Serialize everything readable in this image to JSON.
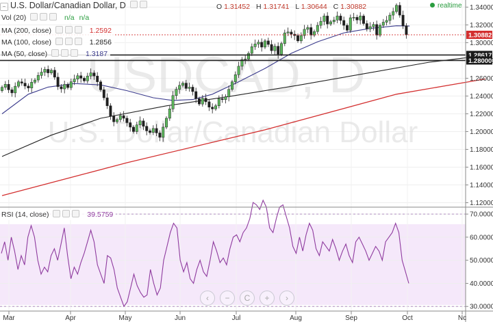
{
  "header": {
    "symbol_title": "U.S. Dollar/Canadian Dollar, D",
    "ohlc": {
      "o_label": "O",
      "o": "1.31452",
      "h_label": "H",
      "h": "1.31741",
      "l_label": "L",
      "l": "1.30644",
      "c_label": "C",
      "c": "1.30882"
    },
    "realtime": "realtime"
  },
  "indicators": {
    "vol": {
      "label": "Vol (20)",
      "value1": "n/a",
      "value2": "n/a"
    },
    "ma200": {
      "label": "MA (200, close)",
      "value": "1.2592",
      "color": "#d32f2f"
    },
    "ma100": {
      "label": "MA (100, close)",
      "value": "1.2856",
      "color": "#222222"
    },
    "ma50": {
      "label": "MA (50, close)",
      "value": "1.3187",
      "color": "#3a3a8c"
    },
    "rsi": {
      "label": "RSI (14, close)",
      "value": "39.5759",
      "color": "#8e3a9e"
    }
  },
  "watermark": {
    "line1": "USDCAD, D",
    "line2": "U.S. Dollar/Canadian Dollar"
  },
  "price_labels": {
    "current": "1.30882",
    "level1": "1.28617",
    "level2": "1.28000"
  },
  "nav_buttons": [
    "‹",
    "−",
    "C",
    "+",
    "›"
  ],
  "chart_data": {
    "type": "candlestick",
    "x_ticks": [
      "Mar",
      "Apr",
      "May",
      "Jun",
      "Jul",
      "Aug",
      "Sep",
      "Oct",
      "Nc"
    ],
    "y_ticks": [
      "1.34000",
      "1.32000",
      "1.30000",
      "1.28000",
      "1.26000",
      "1.24000",
      "1.22000",
      "1.20000",
      "1.18000",
      "1.16000",
      "1.14000",
      "1.12000"
    ],
    "ylim": [
      1.115,
      1.348
    ],
    "horizontal_levels": [
      1.28617,
      1.28
    ],
    "rsi_ticks": [
      "70.0000",
      "60.0000",
      "50.0000",
      "40.0000",
      "30.0000"
    ],
    "rsi_ylim": [
      28,
      73
    ],
    "rsi_band": [
      30,
      70
    ],
    "candles_close": [
      1.2498,
      1.2532,
      1.247,
      1.2435,
      1.251,
      1.256,
      1.2545,
      1.2512,
      1.249,
      1.2555,
      1.258,
      1.2632,
      1.2668,
      1.27,
      1.266,
      1.269,
      1.2612,
      1.2505,
      1.248,
      1.253,
      1.2495,
      1.256,
      1.259,
      1.2628,
      1.26,
      1.257,
      1.2625,
      1.266,
      1.2625,
      1.256,
      1.247,
      1.238,
      1.229,
      1.2175,
      1.211,
      1.2135,
      1.218,
      1.215,
      1.21,
      1.205,
      1.2,
      1.2075,
      1.212,
      1.206,
      1.2008,
      1.199,
      1.2035,
      1.1985,
      1.1935,
      1.205,
      1.215,
      1.2255,
      1.2405,
      1.2475,
      1.252,
      1.2545,
      1.2485,
      1.25,
      1.245,
      1.237,
      1.231,
      1.2375,
      1.2335,
      1.2275,
      1.2255,
      1.229,
      1.237,
      1.236,
      1.239,
      1.2475,
      1.256,
      1.264,
      1.2735,
      1.281,
      1.2815,
      1.288,
      1.2955,
      1.2985,
      1.3005,
      1.295,
      1.302,
      1.298,
      1.291,
      1.296,
      1.287,
      1.299,
      1.311,
      1.312,
      1.3095,
      1.308,
      1.302,
      1.308,
      1.315,
      1.317,
      1.3085,
      1.3125,
      1.3195,
      1.324,
      1.33,
      1.321,
      1.3235,
      1.3255,
      1.33,
      1.325,
      1.3195,
      1.314,
      1.328,
      1.3285,
      1.3255,
      1.33,
      1.3215,
      1.3155,
      1.318,
      1.3205,
      1.3085,
      1.3195,
      1.323,
      1.325,
      1.331,
      1.335,
      1.342,
      1.331,
      1.319,
      1.3088
    ],
    "candles_open_first": 1.246,
    "ma200_close": [
      [
        0,
        1.128
      ],
      [
        38,
        1.165
      ],
      [
        80,
        1.202
      ],
      [
        120,
        1.242
      ],
      [
        147,
        1.2592
      ]
    ],
    "ma100_close": [
      [
        0,
        1.172
      ],
      [
        15,
        1.196
      ],
      [
        30,
        1.215
      ],
      [
        50,
        1.229
      ],
      [
        70,
        1.24
      ],
      [
        90,
        1.252
      ],
      [
        110,
        1.265
      ],
      [
        130,
        1.278
      ],
      [
        147,
        1.2856
      ]
    ],
    "ma50_close": [
      [
        0,
        1.22
      ],
      [
        8,
        1.242
      ],
      [
        14,
        1.25
      ],
      [
        22,
        1.254
      ],
      [
        30,
        1.2525
      ],
      [
        38,
        1.246
      ],
      [
        46,
        1.238
      ],
      [
        52,
        1.235
      ],
      [
        58,
        1.236
      ],
      [
        64,
        1.242
      ],
      [
        72,
        1.256
      ],
      [
        80,
        1.271
      ],
      [
        88,
        1.288
      ],
      [
        96,
        1.301
      ],
      [
        104,
        1.311
      ],
      [
        112,
        1.316
      ],
      [
        120,
        1.319
      ],
      [
        124,
        1.3187
      ]
    ],
    "rsi_values": [
      53,
      58,
      50,
      60,
      54,
      46,
      52,
      48,
      60,
      65,
      60,
      50,
      44,
      47,
      45,
      52,
      55,
      50,
      57,
      64,
      52,
      42,
      47,
      44,
      49,
      53,
      58,
      63,
      58,
      48,
      44,
      40,
      52,
      51,
      46,
      38,
      34,
      30,
      32,
      38,
      44,
      39,
      36,
      34,
      35,
      46,
      40,
      35,
      38,
      50,
      56,
      62,
      66,
      64,
      50,
      45,
      49,
      42,
      40,
      46,
      50,
      45,
      43,
      50,
      58,
      54,
      49,
      51,
      48,
      55,
      60,
      61,
      58,
      62,
      64,
      68,
      75,
      74,
      72,
      76,
      73,
      64,
      62,
      68,
      73,
      74,
      69,
      64,
      56,
      53,
      60,
      54,
      61,
      66,
      63,
      55,
      52,
      58,
      56,
      54,
      59,
      55,
      50,
      54,
      57,
      52,
      49,
      58,
      60,
      57,
      54,
      50,
      53,
      56,
      54,
      50,
      58,
      60,
      62,
      66,
      62,
      50,
      45,
      40
    ]
  }
}
